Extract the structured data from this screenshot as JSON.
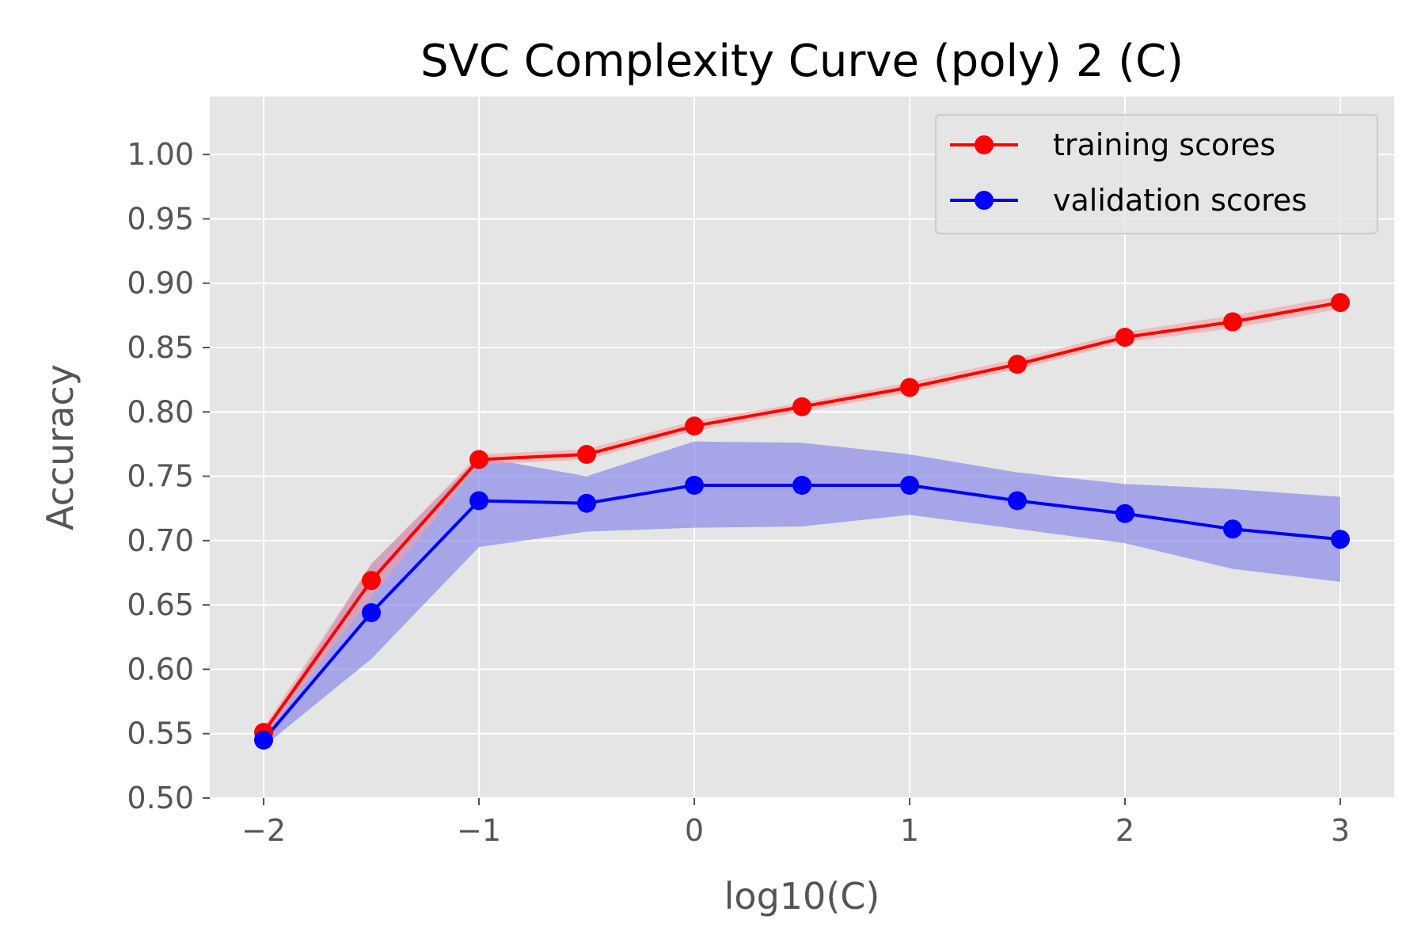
{
  "chart_data": {
    "type": "line",
    "title": "SVC Complexity Curve (poly) 2 (C)",
    "xlabel": "log10(C)",
    "ylabel": "Accuracy",
    "x": [
      -2.0,
      -1.5,
      -1.0,
      -0.5,
      0.0,
      0.5,
      1.0,
      1.5,
      2.0,
      2.5,
      3.0
    ],
    "xlim": [
      -2.25,
      3.25
    ],
    "ylim": [
      0.5,
      1.045
    ],
    "xticks": [
      -2,
      -1,
      0,
      1,
      2,
      3
    ],
    "xtick_labels": [
      "−2",
      "−1",
      "0",
      "1",
      "2",
      "3"
    ],
    "yticks": [
      0.5,
      0.55,
      0.6,
      0.65,
      0.7,
      0.75,
      0.8,
      0.85,
      0.9,
      0.95,
      1.0
    ],
    "ytick_labels": [
      "0.50",
      "0.55",
      "0.60",
      "0.65",
      "0.70",
      "0.75",
      "0.80",
      "0.85",
      "0.90",
      "0.95",
      "1.00"
    ],
    "grid": true,
    "legend_position": "top-right",
    "series": [
      {
        "name": "training scores",
        "color": "#ff0000",
        "band_color": "#f4a0a0",
        "values": [
          0.551,
          0.669,
          0.763,
          0.767,
          0.789,
          0.804,
          0.819,
          0.837,
          0.858,
          0.87,
          0.885
        ],
        "upper": [
          0.555,
          0.682,
          0.767,
          0.771,
          0.793,
          0.807,
          0.823,
          0.841,
          0.862,
          0.875,
          0.89
        ],
        "lower": [
          0.547,
          0.656,
          0.759,
          0.763,
          0.785,
          0.8,
          0.815,
          0.833,
          0.854,
          0.865,
          0.88
        ]
      },
      {
        "name": "validation scores",
        "color": "#0000ff",
        "band_color": "#8a8aea",
        "values": [
          0.545,
          0.644,
          0.731,
          0.729,
          0.743,
          0.743,
          0.743,
          0.731,
          0.721,
          0.709,
          0.701
        ],
        "upper": [
          0.55,
          0.682,
          0.765,
          0.75,
          0.777,
          0.776,
          0.767,
          0.753,
          0.744,
          0.74,
          0.734
        ],
        "lower": [
          0.54,
          0.608,
          0.695,
          0.707,
          0.71,
          0.711,
          0.72,
          0.709,
          0.698,
          0.678,
          0.668
        ]
      }
    ]
  }
}
